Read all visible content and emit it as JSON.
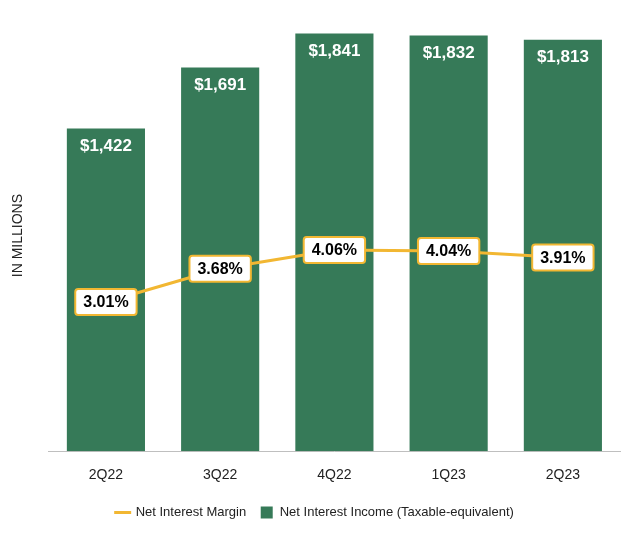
{
  "chart_data": {
    "type": "bar",
    "y_label": "IN MILLIONS",
    "categories": [
      "2Q22",
      "3Q22",
      "4Q22",
      "1Q23",
      "2Q23"
    ],
    "series": [
      {
        "name": "Net Interest Income (Taxable-equivalent)",
        "type": "bar",
        "color": "#367a58",
        "values": [
          1422,
          1691,
          1841,
          1832,
          1813
        ],
        "value_labels": [
          "$1,422",
          "$1,691",
          "$1,841",
          "$1,832",
          "$1,813"
        ]
      },
      {
        "name": "Net Interest Margin",
        "type": "line",
        "axis": "y2",
        "color": "#f2b732",
        "values": [
          3.01,
          3.68,
          4.06,
          4.04,
          3.91
        ],
        "value_labels": [
          "3.01%",
          "3.68%",
          "4.06%",
          "4.04%",
          "3.91%"
        ]
      }
    ],
    "ylim": [
      0,
      1900
    ],
    "y2lim": [
      0,
      8.7
    ],
    "grid": false,
    "legend": "bottom",
    "data_labels": true,
    "tick_labels": "x"
  }
}
